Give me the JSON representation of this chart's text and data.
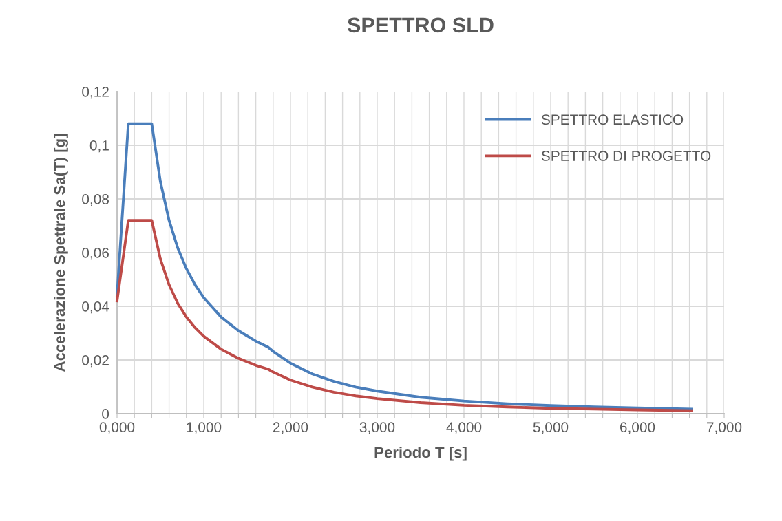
{
  "chart_data": {
    "type": "line",
    "title": "SPETTRO SLD",
    "xlabel": "Periodo T [s]",
    "ylabel": "Accelerazione Spettrale Sa(T) [g]",
    "x": [
      0,
      0.13,
      0.4,
      0.5,
      0.6,
      0.7,
      0.8,
      0.9,
      1.0,
      1.2,
      1.4,
      1.6,
      1.74,
      1.8,
      2.0,
      2.25,
      2.5,
      2.75,
      3.0,
      3.5,
      4.0,
      4.5,
      5.0,
      5.5,
      6.0,
      6.62
    ],
    "series": [
      {
        "name": "SPETTRO ELASTICO",
        "color": "#4a7ebb",
        "values": [
          0.044,
          0.108,
          0.108,
          0.0864,
          0.072,
          0.0617,
          0.054,
          0.048,
          0.0432,
          0.036,
          0.0309,
          0.027,
          0.0248,
          0.0232,
          0.0188,
          0.0148,
          0.012,
          0.0099,
          0.0084,
          0.0061,
          0.0047,
          0.0037,
          0.003,
          0.0025,
          0.0021,
          0.0017
        ]
      },
      {
        "name": "SPETTRO DI PROGETTO",
        "color": "#be4b48",
        "values": [
          0.042,
          0.072,
          0.072,
          0.0576,
          0.048,
          0.0411,
          0.036,
          0.032,
          0.0288,
          0.024,
          0.0206,
          0.018,
          0.0166,
          0.0155,
          0.0125,
          0.0099,
          0.008,
          0.0066,
          0.0056,
          0.0041,
          0.0031,
          0.0025,
          0.002,
          0.0017,
          0.0014,
          0.0011
        ]
      }
    ],
    "xlim": [
      0,
      7
    ],
    "ylim": [
      0,
      0.12
    ],
    "xticks": [
      {
        "value": 0,
        "label": "0,000"
      },
      {
        "value": 0.2,
        "label": null
      },
      {
        "value": 0.4,
        "label": null
      },
      {
        "value": 0.6,
        "label": null
      },
      {
        "value": 0.8,
        "label": null
      },
      {
        "value": 1,
        "label": "1,000"
      },
      {
        "value": 1.2,
        "label": null
      },
      {
        "value": 1.4,
        "label": null
      },
      {
        "value": 1.6,
        "label": null
      },
      {
        "value": 1.8,
        "label": null
      },
      {
        "value": 2,
        "label": "2,000"
      },
      {
        "value": 2.2,
        "label": null
      },
      {
        "value": 2.4,
        "label": null
      },
      {
        "value": 2.6,
        "label": null
      },
      {
        "value": 2.8,
        "label": null
      },
      {
        "value": 3,
        "label": "3,000"
      },
      {
        "value": 3.2,
        "label": null
      },
      {
        "value": 3.4,
        "label": null
      },
      {
        "value": 3.6,
        "label": null
      },
      {
        "value": 3.8,
        "label": null
      },
      {
        "value": 4,
        "label": "4,000"
      },
      {
        "value": 4.2,
        "label": null
      },
      {
        "value": 4.4,
        "label": null
      },
      {
        "value": 4.6,
        "label": null
      },
      {
        "value": 4.8,
        "label": null
      },
      {
        "value": 5,
        "label": "5,000"
      },
      {
        "value": 5.2,
        "label": null
      },
      {
        "value": 5.4,
        "label": null
      },
      {
        "value": 5.6,
        "label": null
      },
      {
        "value": 5.8,
        "label": null
      },
      {
        "value": 6,
        "label": "6,000"
      },
      {
        "value": 6.2,
        "label": null
      },
      {
        "value": 6.4,
        "label": null
      },
      {
        "value": 6.6,
        "label": null
      },
      {
        "value": 6.8,
        "label": null
      },
      {
        "value": 7,
        "label": "7,000"
      }
    ],
    "yticks": [
      0,
      {
        "value": 0.02,
        "label": "0,02"
      },
      {
        "value": 0.04,
        "label": "0,04"
      },
      {
        "value": 0.06,
        "label": "0,06"
      },
      {
        "value": 0.08,
        "label": "0,08"
      },
      {
        "value": 0.1,
        "label": "0,1"
      },
      {
        "value": 0.12,
        "label": "0,12"
      }
    ],
    "grid": true,
    "legend": "top right",
    "marker": "none",
    "line_style": "solid"
  }
}
